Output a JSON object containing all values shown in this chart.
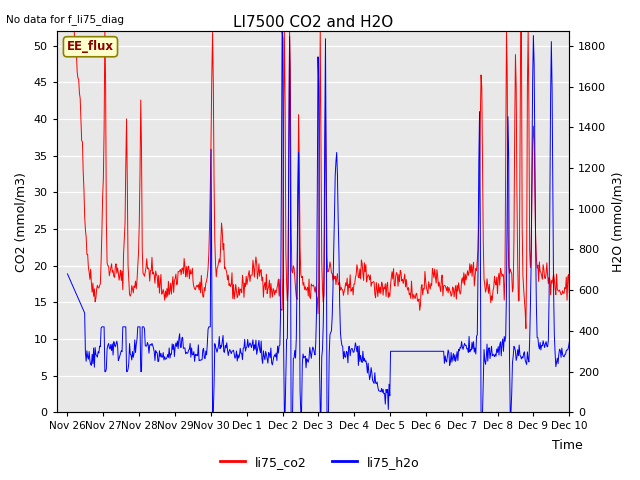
{
  "title": "LI7500 CO2 and H2O",
  "top_left_text": "No data for f_li75_diag",
  "xlabel": "Time",
  "ylabel_left": "CO2 (mmol/m3)",
  "ylabel_right": "H2O (mmol/m3)",
  "ylim_left": [
    0,
    52
  ],
  "ylim_right": [
    0,
    1872
  ],
  "yticks_left": [
    0,
    5,
    10,
    15,
    20,
    25,
    30,
    35,
    40,
    45,
    50
  ],
  "yticks_right": [
    0,
    200,
    400,
    600,
    800,
    1000,
    1200,
    1400,
    1600,
    1800
  ],
  "xtick_labels": [
    "Nov 26",
    "Nov 27",
    "Nov 28",
    "Nov 29",
    "Nov 30",
    "Dec 1",
    "Dec 2",
    "Dec 3",
    "Dec 4",
    "Dec 5",
    "Dec 6",
    "Dec 7",
    "Dec 8",
    "Dec 9",
    "Dec 10"
  ],
  "box_label": "EE_flux",
  "box_color": "#ffffcc",
  "box_border": "#8B8000",
  "legend_entries": [
    "li75_co2",
    "li75_h2o"
  ],
  "legend_colors": [
    "red",
    "blue"
  ],
  "line_color_co2": "red",
  "line_color_h2o": "blue",
  "plot_bg_color": "#e8e8e8",
  "title_fontsize": 11,
  "label_fontsize": 9,
  "tick_fontsize": 8
}
